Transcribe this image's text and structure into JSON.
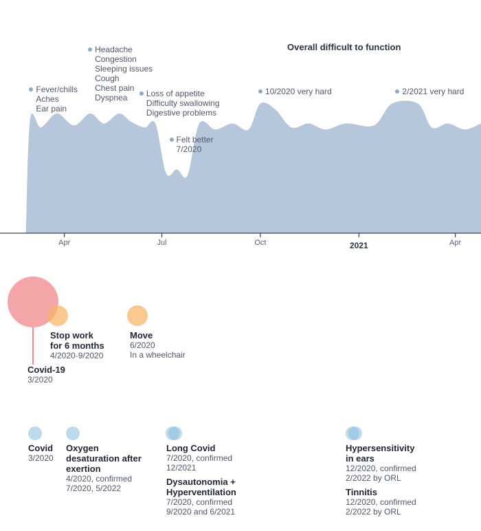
{
  "chart_data": {
    "type": "area",
    "title": "Overall difficult to function",
    "xlabel": "",
    "ylabel": "",
    "x_range": [
      "2020-02-15",
      "2021-04-25"
    ],
    "ylim": [
      0,
      10
    ],
    "series": [
      {
        "name": "Overall difficult to function",
        "points": [
          {
            "x": "2020-02-25",
            "y": 0
          },
          {
            "x": "2020-02-29",
            "y": 5.7
          },
          {
            "x": "2020-03-10",
            "y": 5.3
          },
          {
            "x": "2020-03-25",
            "y": 6.0
          },
          {
            "x": "2020-04-10",
            "y": 5.4
          },
          {
            "x": "2020-04-25",
            "y": 6.0
          },
          {
            "x": "2020-05-08",
            "y": 5.5
          },
          {
            "x": "2020-05-22",
            "y": 6.0
          },
          {
            "x": "2020-06-02",
            "y": 5.6
          },
          {
            "x": "2020-06-15",
            "y": 5.3
          },
          {
            "x": "2020-06-25",
            "y": 5.5
          },
          {
            "x": "2020-07-05",
            "y": 3.0
          },
          {
            "x": "2020-07-15",
            "y": 3.2
          },
          {
            "x": "2020-07-25",
            "y": 2.9
          },
          {
            "x": "2020-08-05",
            "y": 5.5
          },
          {
            "x": "2020-08-20",
            "y": 5.2
          },
          {
            "x": "2020-09-05",
            "y": 5.5
          },
          {
            "x": "2020-09-20",
            "y": 5.2
          },
          {
            "x": "2020-10-01",
            "y": 6.5
          },
          {
            "x": "2020-10-15",
            "y": 6.2
          },
          {
            "x": "2020-10-30",
            "y": 5.3
          },
          {
            "x": "2020-11-15",
            "y": 5.5
          },
          {
            "x": "2020-12-01",
            "y": 5.2
          },
          {
            "x": "2020-12-20",
            "y": 5.5
          },
          {
            "x": "2021-01-15",
            "y": 5.4
          },
          {
            "x": "2021-02-01",
            "y": 6.5
          },
          {
            "x": "2021-02-25",
            "y": 6.5
          },
          {
            "x": "2021-03-10",
            "y": 5.3
          },
          {
            "x": "2021-03-25",
            "y": 5.5
          },
          {
            "x": "2021-04-10",
            "y": 5.2
          },
          {
            "x": "2021-04-25",
            "y": 5.5
          }
        ]
      }
    ],
    "ticks": [
      {
        "x": "2020-04-01",
        "label": "Apr",
        "year": false
      },
      {
        "x": "2020-07-01",
        "label": "Jul",
        "year": false
      },
      {
        "x": "2020-10-01",
        "label": "Oct",
        "year": false
      },
      {
        "x": "2021-01-01",
        "label": "2021",
        "year": true
      },
      {
        "x": "2021-04-01",
        "label": "Apr",
        "year": false
      }
    ],
    "annotations": [
      {
        "x": "2020-03-01",
        "y": 7.2,
        "lines": [
          "Fever/chills",
          "Aches",
          "Ear pain"
        ]
      },
      {
        "x": "2020-04-25",
        "y": 9.2,
        "lines": [
          "Headache",
          "Congestion",
          "Sleeping issues",
          "Cough",
          "Chest pain",
          "Dyspnea"
        ]
      },
      {
        "x": "2020-06-12",
        "y": 7.0,
        "lines": [
          "Loss of appetite",
          "Difficulty swallowing",
          "Digestive problems"
        ]
      },
      {
        "x": "2020-07-10",
        "y": 4.7,
        "lines": [
          "Felt better",
          "7/2020"
        ]
      },
      {
        "x": "2020-10-01",
        "y": 7.1,
        "lines": [
          "10/2020 very hard"
        ]
      },
      {
        "x": "2021-02-06",
        "y": 7.1,
        "lines": [
          "2/2021 very hard"
        ]
      }
    ]
  },
  "life_events": [
    {
      "id": "covid",
      "title": "Covid-19",
      "sub": [
        "3/2020"
      ],
      "color": "#f08a8e"
    },
    {
      "id": "stop-work",
      "title": "Stop work\nfor 6 months",
      "sub": [
        "4/2020-9/2020"
      ],
      "color": "#f6b86c"
    },
    {
      "id": "move",
      "title": "Move",
      "sub": [
        "6/2020",
        "In a wheelchair"
      ],
      "color": "#f6b86c"
    }
  ],
  "diagnoses": [
    {
      "id": "covid",
      "title": "Covid",
      "sub": "3/2020",
      "color": "#b3d6ea"
    },
    {
      "id": "oxygen",
      "title": "Oxygen desaturation after exertion",
      "sub": "4/2020, confirmed 7/2020, 5/2022",
      "color": "#b3d6ea"
    },
    {
      "id": "long-covid",
      "title": "Long Covid",
      "sub": "7/2020, confirmed 12/2021",
      "color": "#8dc0df"
    },
    {
      "id": "dysautonomia",
      "title": "Dysautonomia + Hyperventilation",
      "sub": "7/2020, confirmed 9/2020 and 6/2021",
      "color": "#8dc0df"
    },
    {
      "id": "hypersensitivity",
      "title": "Hypersensitivity in ears",
      "sub": "12/2020, confirmed 2/2022 by ORL",
      "color": "#8dc0df"
    },
    {
      "id": "tinnitis",
      "title": "Tinnitis",
      "sub": "12/2020, confirmed 2/2022 by ORL",
      "color": "#8dc0df"
    }
  ],
  "colors": {
    "area": "#b7c7db",
    "axis": "#3b4250",
    "annotation_dot": "#8fa8c6"
  }
}
